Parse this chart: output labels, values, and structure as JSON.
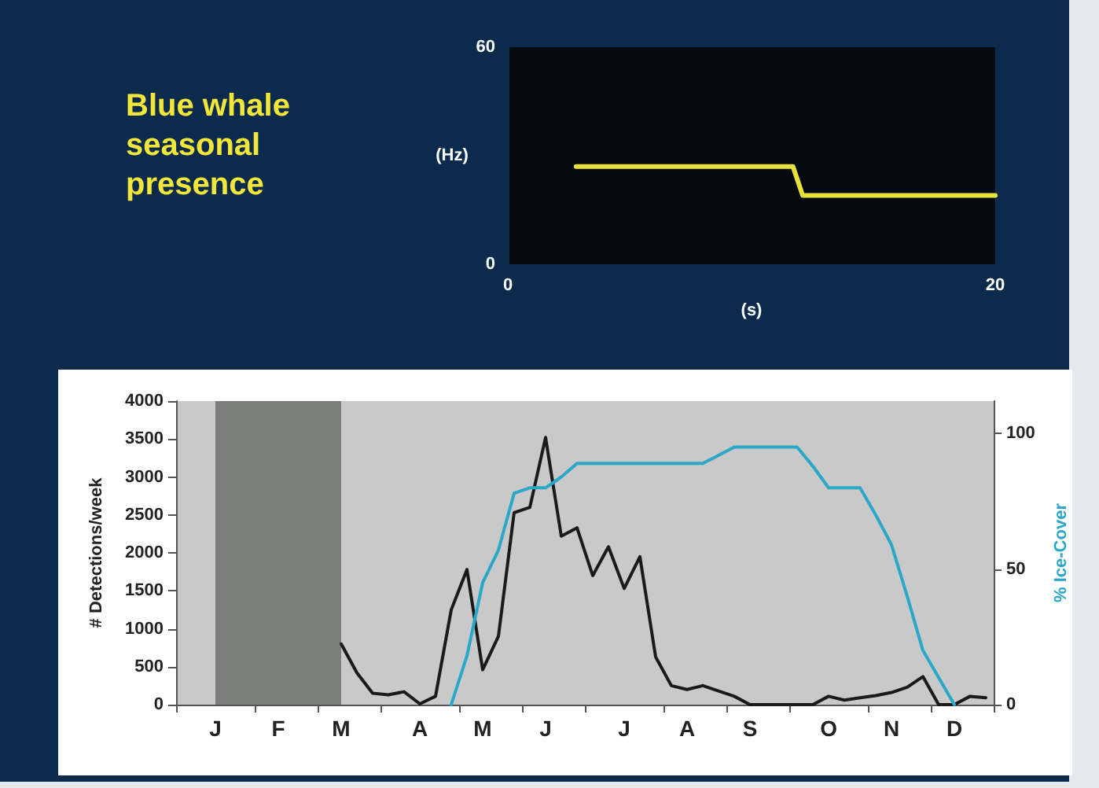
{
  "chart_data": [
    {
      "type": "line",
      "title": "Blue whale seasonal presence",
      "xlabel": "(s)",
      "ylabel": "(Hz)",
      "xlim": [
        0,
        20
      ],
      "xticks": [
        0,
        20
      ],
      "ylim": [
        0,
        60
      ],
      "yticks": [
        0,
        60
      ],
      "marker": "none",
      "series": [
        {
          "color": "#e6e23c",
          "x": [
            2.8,
            11.7,
            12.1,
            20
          ],
          "values": [
            27,
            27,
            19,
            19
          ]
        }
      ]
    },
    {
      "type": "line",
      "ylabel": "# Detections/week",
      "y2label": "% Ice-Cover",
      "categories": [
        null,
        null,
        "J",
        null,
        null,
        null,
        "F",
        null,
        null,
        null,
        "M",
        null,
        null,
        null,
        null,
        "A",
        null,
        null,
        null,
        "M",
        null,
        null,
        null,
        "J",
        null,
        null,
        null,
        null,
        "J",
        null,
        null,
        null,
        "A",
        null,
        null,
        null,
        "S",
        null,
        null,
        null,
        null,
        "O",
        null,
        null,
        null,
        "N",
        null,
        null,
        null,
        "D",
        null,
        null
      ],
      "ylim": [
        0,
        4000
      ],
      "yticks": [
        0,
        500,
        1000,
        1500,
        2000,
        2500,
        3000,
        3500,
        4000
      ],
      "y2lim": [
        0,
        112
      ],
      "y2ticks": [
        0,
        50,
        100
      ],
      "marker": "none",
      "bands": [
        {
          "axis": "x",
          "from": "J",
          "to": "M",
          "color": "#7b7e7b"
        }
      ],
      "series": [
        {
          "color": "#1a1a1a",
          "values": [
            null,
            null,
            null,
            null,
            null,
            null,
            null,
            null,
            null,
            null,
            800,
            420,
            150,
            130,
            170,
            10,
            110,
            1250,
            1780,
            460,
            900,
            2530,
            2600,
            3520,
            2220,
            2330,
            1700,
            2080,
            1530,
            1950,
            630,
            250,
            200,
            250,
            180,
            110,
            0,
            0,
            0,
            0,
            0,
            110,
            60,
            90,
            120,
            160,
            230,
            370,
            0,
            0,
            110,
            90
          ]
        },
        {
          "color": "#2aa8c8",
          "axis": "y2",
          "values": [
            null,
            null,
            null,
            null,
            null,
            null,
            null,
            null,
            null,
            null,
            null,
            null,
            null,
            null,
            null,
            null,
            null,
            0,
            18,
            45,
            57,
            78,
            80,
            80,
            84,
            89,
            89,
            89,
            89,
            89,
            89,
            89,
            89,
            89,
            92,
            95,
            95,
            95,
            95,
            95,
            88,
            80,
            80,
            80,
            70,
            59,
            40,
            20,
            10,
            0,
            null,
            null
          ]
        }
      ]
    }
  ]
}
